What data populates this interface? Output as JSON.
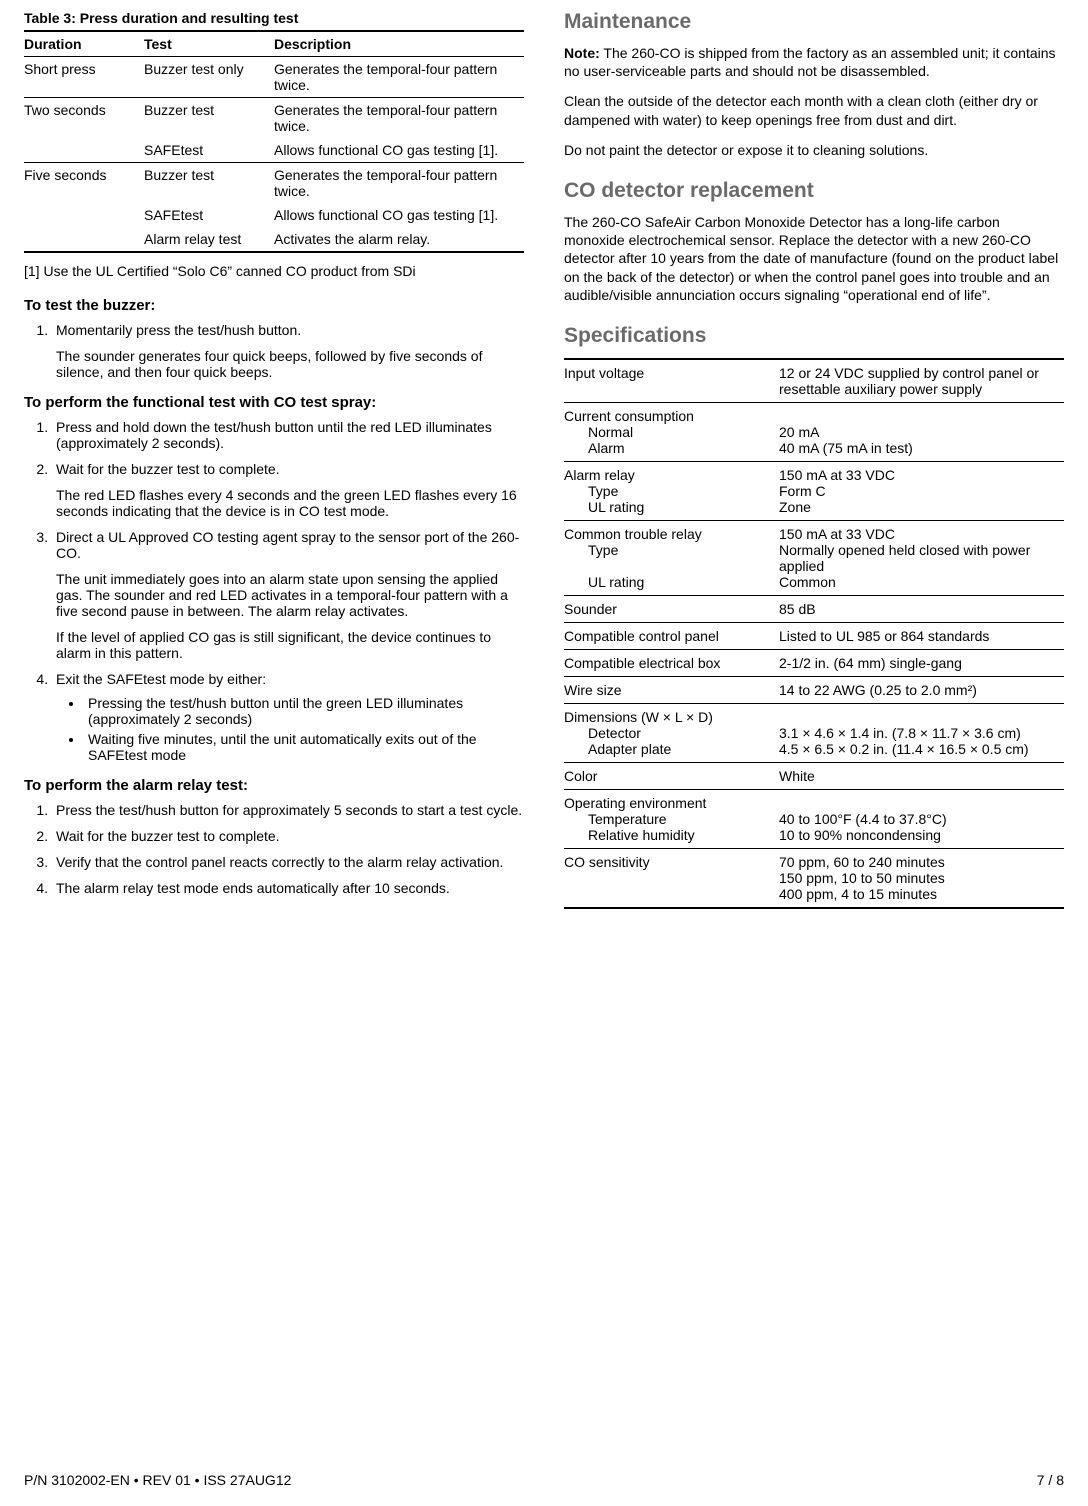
{
  "left": {
    "table3": {
      "caption": "Table 3: Press duration and resulting test",
      "headers": [
        "Duration",
        "Test",
        "Description"
      ],
      "rows": [
        {
          "duration": "Short press",
          "test": "Buzzer test only",
          "desc": "Generates the temporal-four pattern twice.",
          "group_end": true
        },
        {
          "duration": "Two seconds",
          "test": "Buzzer test",
          "desc": "Generates the temporal-four pattern twice."
        },
        {
          "duration": "",
          "test": "SAFEtest",
          "desc": "Allows functional CO gas testing [1].",
          "group_end": true
        },
        {
          "duration": "Five seconds",
          "test": "Buzzer test",
          "desc": "Generates the temporal-four pattern twice."
        },
        {
          "duration": "",
          "test": "SAFEtest",
          "desc": "Allows functional CO gas testing [1]."
        },
        {
          "duration": "",
          "test": "Alarm relay test",
          "desc": "Activates the alarm relay.",
          "last": true
        }
      ],
      "footnote": "[1] Use the UL Certified “Solo C6” canned CO product from SDi"
    },
    "buzzer": {
      "heading": "To test the buzzer:",
      "step1": "Momentarily press the test/hush button.",
      "step1_sub": "The sounder generates four quick beeps, followed by five seconds of silence, and then four quick beeps."
    },
    "functional": {
      "heading": "To perform the functional test with CO test spray:",
      "step1": "Press and hold down the test/hush button until the red LED illuminates (approximately 2 seconds).",
      "step2": "Wait for the buzzer test to complete.",
      "step2_sub": "The red LED flashes every 4 seconds and the green LED flashes every 16 seconds indicating that the device is in CO test mode.",
      "step3": "Direct a UL Approved CO testing agent spray to the sensor port of the 260-CO.",
      "step3_sub1": "The unit immediately goes into an alarm state upon sensing the applied gas. The sounder and red LED activates in a temporal-four pattern with a five second pause in between. The alarm relay activates.",
      "step3_sub2": "If the level of applied CO gas is still significant, the device continues to alarm in this pattern.",
      "step4": "Exit the SAFEtest mode by either:",
      "step4_b1": "Pressing the test/hush button until the green LED illuminates (approximately 2 seconds)",
      "step4_b2": "Waiting five minutes, until the unit automatically exits out of the SAFEtest mode"
    },
    "relay": {
      "heading": "To perform the alarm relay test:",
      "step1": "Press the test/hush button for approximately 5 seconds to start a test cycle.",
      "step2": "Wait for the buzzer test to complete.",
      "step3": "Verify that the control panel reacts correctly to the alarm relay activation.",
      "step4": "The alarm relay test mode ends automatically after 10 seconds."
    }
  },
  "right": {
    "maintenance": {
      "heading": "Maintenance",
      "note_label": "Note:",
      "note_text": " The 260-CO is shipped from the factory as an assembled unit; it contains no user-serviceable parts and should not be disassembled.",
      "p1": "Clean the outside of the detector each month with a clean cloth (either dry or dampened with water) to keep openings free from dust and dirt.",
      "p2": "Do not paint the detector or expose it to cleaning solutions."
    },
    "replacement": {
      "heading": "CO detector replacement",
      "p1": "The 260-CO SafeAir Carbon Monoxide Detector has a long-life carbon monoxide electrochemical sensor. Replace the detector with a new 260-CO detector after 10 years from the date of manufacture (found on the product label on the back of the detector) or when the control panel goes into trouble and an audible/visible annunciation occurs signaling “operational end of life”."
    },
    "specs": {
      "heading": "Specifications",
      "rows": {
        "input_voltage_l": "Input voltage",
        "input_voltage_v": "12 or 24 VDC supplied by control panel or resettable auxiliary power supply",
        "current_l": "Current consumption",
        "current_normal_l": "Normal",
        "current_normal_v": "20 mA",
        "current_alarm_l": "Alarm",
        "current_alarm_v": "40 mA (75 mA in test)",
        "alarm_relay_l": "Alarm relay",
        "alarm_relay_v": "150 mA at 33 VDC",
        "alarm_type_l": "Type",
        "alarm_type_v": "Form C",
        "alarm_ul_l": "UL rating",
        "alarm_ul_v": "Zone",
        "trouble_l": "Common trouble relay",
        "trouble_v": "150 mA at 33 VDC",
        "trouble_type_l": "Type",
        "trouble_type_v": "Normally opened held closed with power applied",
        "trouble_ul_l": "UL rating",
        "trouble_ul_v": "Common",
        "sounder_l": "Sounder",
        "sounder_v": "85 dB",
        "panel_l": "Compatible control panel",
        "panel_v": "Listed to UL 985 or 864 standards",
        "box_l": "Compatible electrical box",
        "box_v": "2-1/2 in. (64 mm) single-gang",
        "wire_l": "Wire size",
        "wire_v": " 14 to 22 AWG (0.25 to 2.0 mm²)",
        "dim_l": "Dimensions (W × L × D)",
        "dim_det_l": "Detector",
        "dim_det_v": "3.1 × 4.6 × 1.4 in. (7.8 × 11.7 × 3.6 cm)",
        "dim_adp_l": "Adapter plate",
        "dim_adp_v": "4.5 × 6.5 × 0.2 in. (11.4 × 16.5 × 0.5 cm)",
        "color_l": "Color",
        "color_v": "White",
        "env_l": "Operating environment",
        "env_temp_l": "Temperature",
        "env_temp_v": "40 to 100°F (4.4 to 37.8°C)",
        "env_rh_l": "Relative humidity",
        "env_rh_v": "10 to 90% noncondensing",
        "co_l": "CO sensitivity",
        "co_v1": "70 ppm, 60 to 240 minutes",
        "co_v2": "150 ppm, 10 to 50 minutes",
        "co_v3": "400 ppm, 4 to 15 minutes"
      }
    }
  },
  "footer": {
    "left": "P/N 3102002-EN • REV 01 • ISS 27AUG12",
    "right": "7 / 8"
  }
}
